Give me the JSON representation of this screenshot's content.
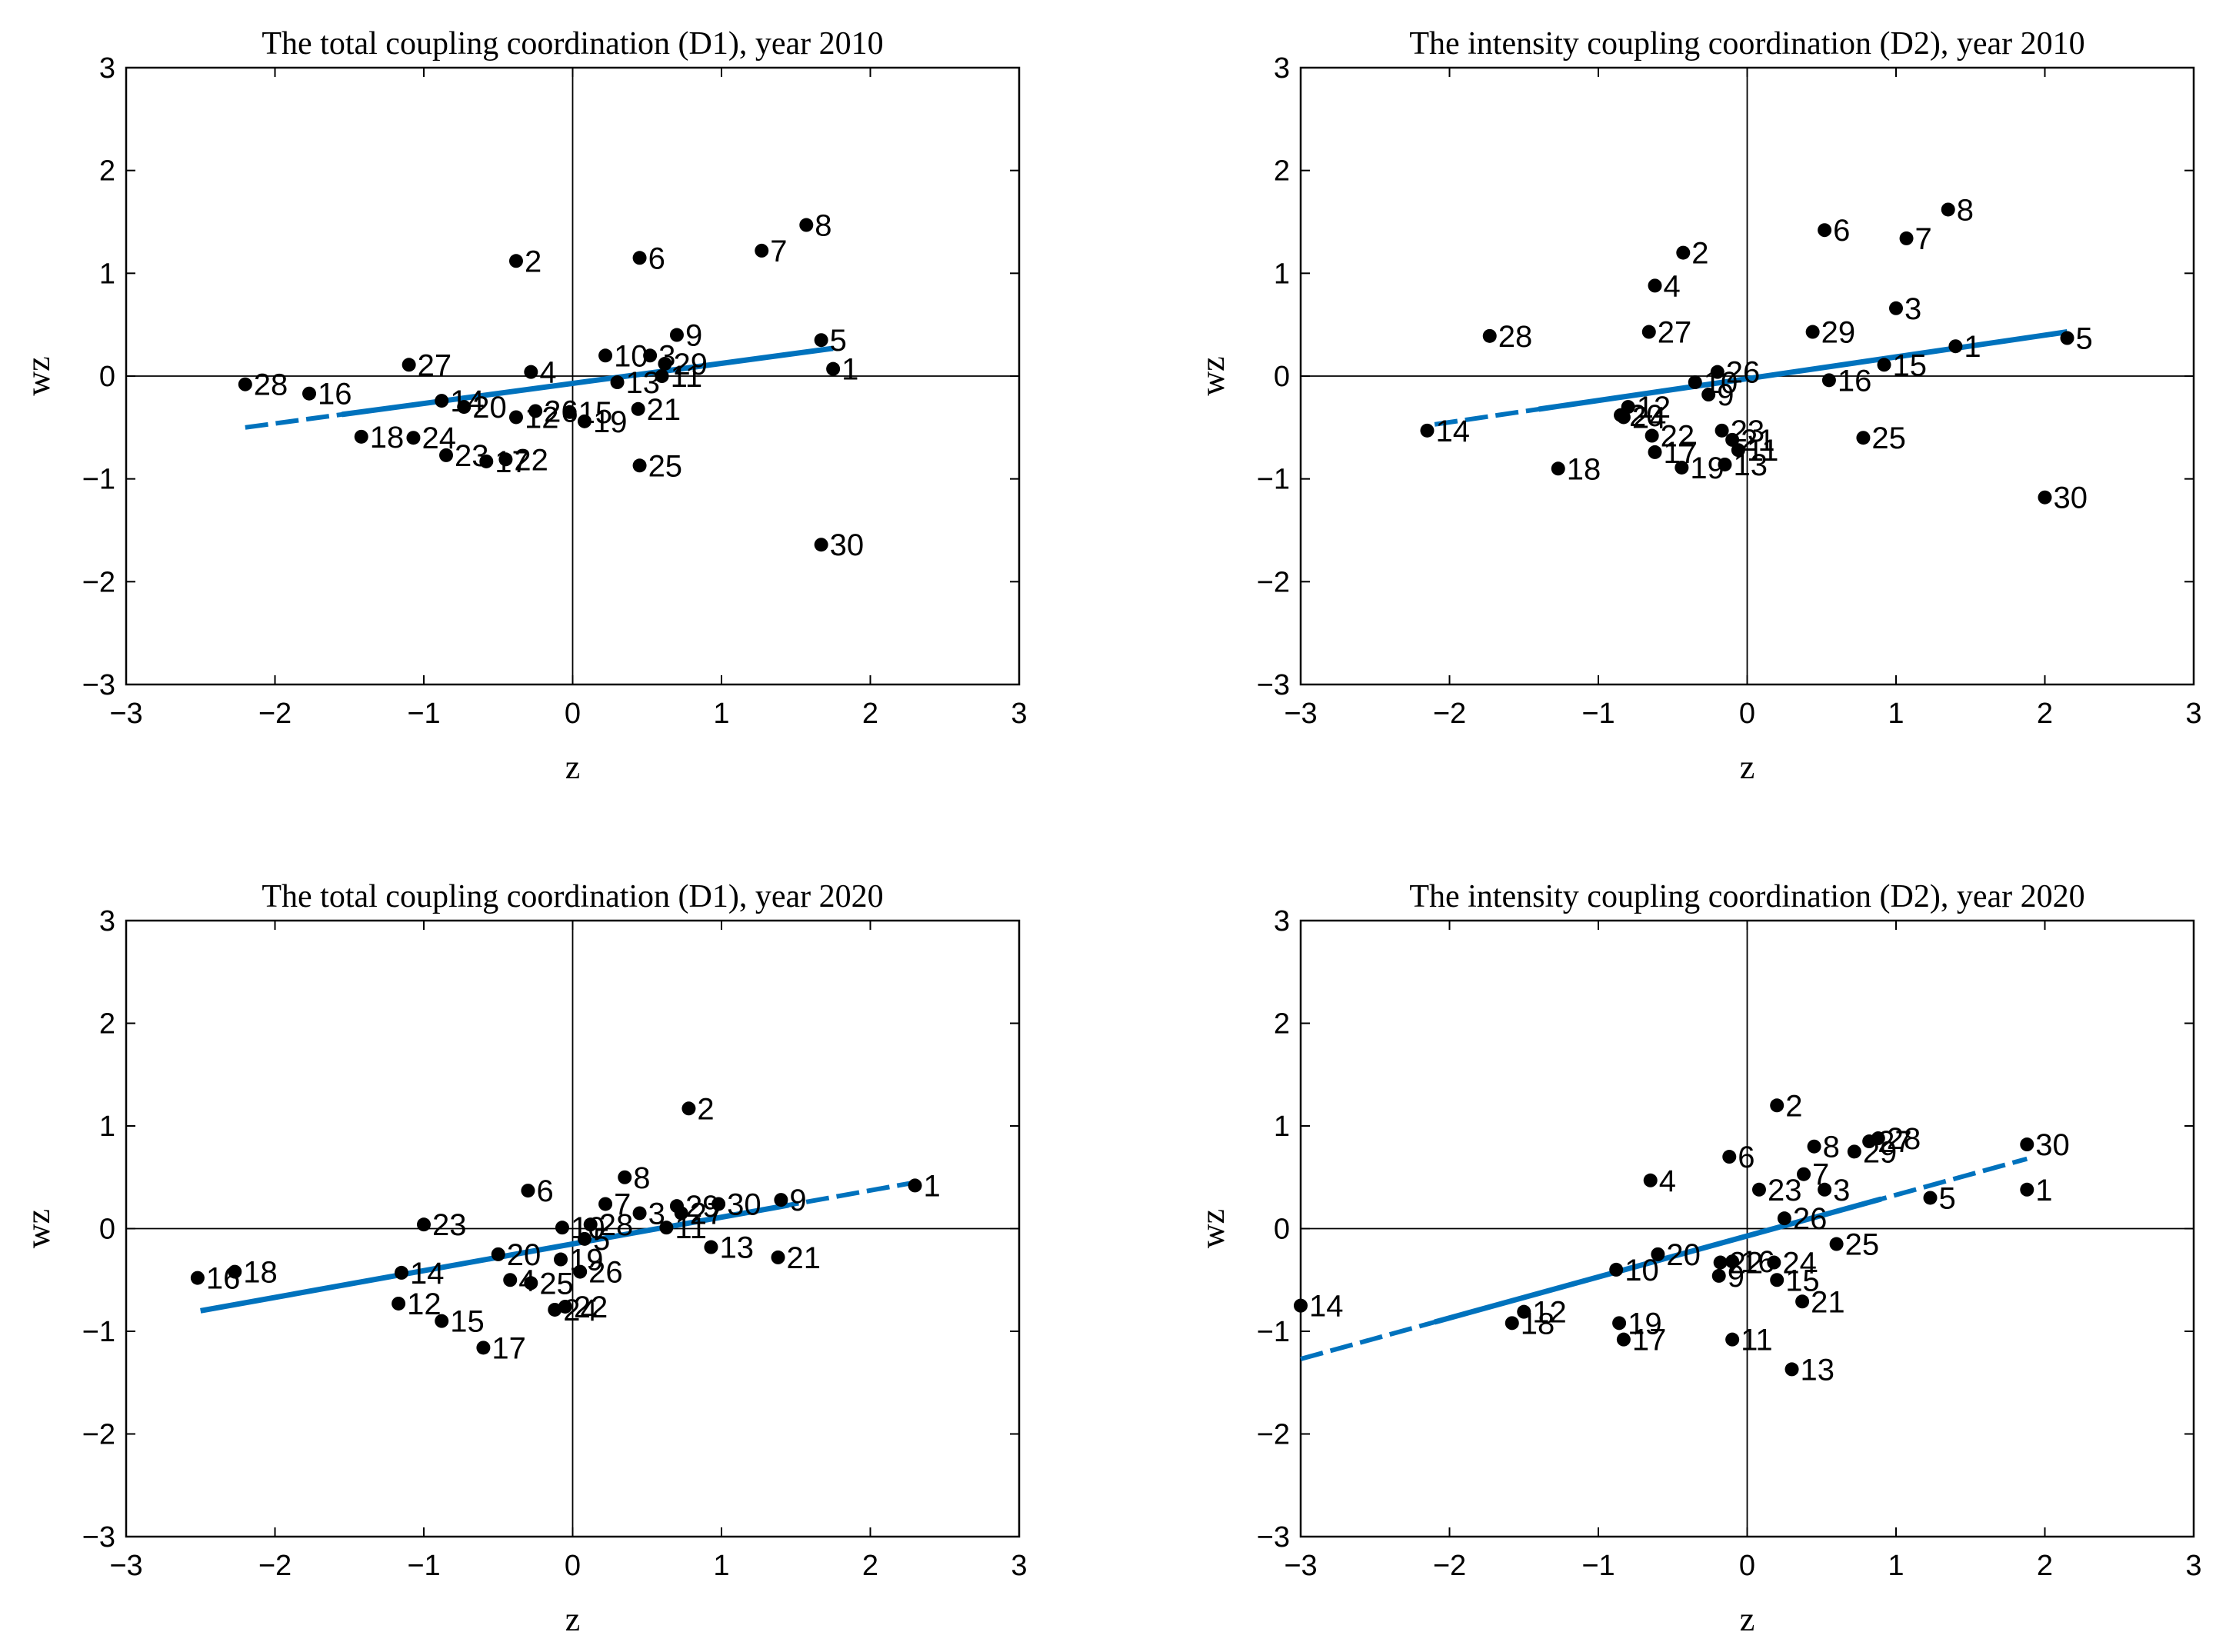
{
  "chart_data": [
    {
      "type": "scatter",
      "title": "The total coupling coordination (D1), year 2010",
      "xlabel": "z",
      "ylabel": "wz",
      "xlim": [
        -3,
        3
      ],
      "ylim": [
        -3,
        3
      ],
      "xticks": [
        -3,
        -2,
        -1,
        0,
        1,
        2,
        3
      ],
      "yticks": [
        -3,
        -2,
        -1,
        0,
        1,
        2,
        3
      ],
      "regression": {
        "x_start": -2.2,
        "y_start": -0.5,
        "x_end": 1.75,
        "y_end": 0.27,
        "solid_from_x": -1.55,
        "solid_to_x": 1.75
      },
      "points": [
        {
          "label": "1",
          "x": 1.75,
          "y": 0.07
        },
        {
          "label": "2",
          "x": -0.38,
          "y": 1.12
        },
        {
          "label": "3",
          "x": 0.52,
          "y": 0.2
        },
        {
          "label": "4",
          "x": -0.28,
          "y": 0.04
        },
        {
          "label": "5",
          "x": 1.67,
          "y": 0.35
        },
        {
          "label": "6",
          "x": 0.45,
          "y": 1.15
        },
        {
          "label": "7",
          "x": 1.27,
          "y": 1.22
        },
        {
          "label": "8",
          "x": 1.57,
          "y": 1.47
        },
        {
          "label": "9",
          "x": 0.7,
          "y": 0.4
        },
        {
          "label": "10",
          "x": 0.22,
          "y": 0.2
        },
        {
          "label": "11",
          "x": 0.6,
          "y": 0.0
        },
        {
          "label": "12",
          "x": -0.38,
          "y": -0.4
        },
        {
          "label": "13",
          "x": 0.3,
          "y": -0.06
        },
        {
          "label": "14",
          "x": -0.88,
          "y": -0.24
        },
        {
          "label": "15",
          "x": -0.02,
          "y": -0.35
        },
        {
          "label": "16",
          "x": -1.77,
          "y": -0.17
        },
        {
          "label": "17",
          "x": -0.58,
          "y": -0.83
        },
        {
          "label": "18",
          "x": -1.42,
          "y": -0.59
        },
        {
          "label": "19",
          "x": 0.08,
          "y": -0.44
        },
        {
          "label": "20",
          "x": -0.73,
          "y": -0.3
        },
        {
          "label": "21",
          "x": 0.44,
          "y": -0.32
        },
        {
          "label": "22",
          "x": -0.45,
          "y": -0.81
        },
        {
          "label": "23",
          "x": -0.85,
          "y": -0.77
        },
        {
          "label": "24",
          "x": -1.07,
          "y": -0.6
        },
        {
          "label": "25",
          "x": 0.45,
          "y": -0.87
        },
        {
          "label": "26",
          "x": -0.25,
          "y": -0.34
        },
        {
          "label": "27",
          "x": -1.1,
          "y": 0.11
        },
        {
          "label": "28",
          "x": -2.2,
          "y": -0.08
        },
        {
          "label": "29",
          "x": 0.62,
          "y": 0.12
        },
        {
          "label": "30",
          "x": 1.67,
          "y": -1.64
        }
      ]
    },
    {
      "type": "scatter",
      "title": "The intensity coupling coordination (D2), year 2010",
      "xlabel": "z",
      "ylabel": "wz",
      "xlim": [
        -3,
        3
      ],
      "ylim": [
        -3,
        3
      ],
      "xticks": [
        -3,
        -2,
        -1,
        0,
        1,
        2,
        3
      ],
      "yticks": [
        -3,
        -2,
        -1,
        0,
        1,
        2,
        3
      ],
      "regression": {
        "x_start": -2.1,
        "y_start": -0.47,
        "x_end": 2.15,
        "y_end": 0.43,
        "solid_from_x": -1.4,
        "solid_to_x": 2.15
      },
      "points": [
        {
          "label": "1",
          "x": 1.4,
          "y": 0.29
        },
        {
          "label": "2",
          "x": -0.43,
          "y": 1.2
        },
        {
          "label": "3",
          "x": 1.0,
          "y": 0.66
        },
        {
          "label": "4",
          "x": -0.62,
          "y": 0.88
        },
        {
          "label": "5",
          "x": 2.15,
          "y": 0.37
        },
        {
          "label": "6",
          "x": 0.52,
          "y": 1.42
        },
        {
          "label": "7",
          "x": 1.07,
          "y": 1.34
        },
        {
          "label": "8",
          "x": 1.35,
          "y": 1.62
        },
        {
          "label": "9",
          "x": -0.26,
          "y": -0.18
        },
        {
          "label": "10",
          "x": -0.35,
          "y": -0.06
        },
        {
          "label": "11",
          "x": -0.06,
          "y": -0.72
        },
        {
          "label": "12",
          "x": -0.8,
          "y": -0.3
        },
        {
          "label": "13",
          "x": -0.15,
          "y": -0.86
        },
        {
          "label": "14",
          "x": -2.15,
          "y": -0.53
        },
        {
          "label": "15",
          "x": 0.92,
          "y": 0.11
        },
        {
          "label": "16",
          "x": 0.55,
          "y": -0.04
        },
        {
          "label": "17",
          "x": -0.62,
          "y": -0.74
        },
        {
          "label": "18",
          "x": -1.27,
          "y": -0.9
        },
        {
          "label": "19",
          "x": -0.44,
          "y": -0.89
        },
        {
          "label": "20",
          "x": -0.85,
          "y": -0.38
        },
        {
          "label": "21",
          "x": -0.1,
          "y": -0.62
        },
        {
          "label": "22",
          "x": -0.64,
          "y": -0.58
        },
        {
          "label": "23",
          "x": -0.17,
          "y": -0.53
        },
        {
          "label": "24",
          "x": -0.83,
          "y": -0.4
        },
        {
          "label": "25",
          "x": 0.78,
          "y": -0.6
        },
        {
          "label": "26",
          "x": -0.2,
          "y": 0.04
        },
        {
          "label": "27",
          "x": -0.66,
          "y": 0.43
        },
        {
          "label": "28",
          "x": -1.73,
          "y": 0.39
        },
        {
          "label": "29",
          "x": 0.44,
          "y": 0.43
        },
        {
          "label": "30",
          "x": 2.0,
          "y": -1.18
        }
      ]
    },
    {
      "type": "scatter",
      "title": "The total coupling coordination (D1), year 2020",
      "xlabel": "z",
      "ylabel": "wz",
      "xlim": [
        -3,
        3
      ],
      "ylim": [
        -3,
        3
      ],
      "xticks": [
        -3,
        -2,
        -1,
        0,
        1,
        2,
        3
      ],
      "yticks": [
        -3,
        -2,
        -1,
        0,
        1,
        2,
        3
      ],
      "regression": {
        "x_start": -2.5,
        "y_start": -0.8,
        "x_end": 2.3,
        "y_end": 0.45,
        "solid_from_x": -2.5,
        "solid_to_x": 1.45
      },
      "points": [
        {
          "label": "1",
          "x": 2.3,
          "y": 0.42
        },
        {
          "label": "2",
          "x": 0.78,
          "y": 1.17
        },
        {
          "label": "3",
          "x": 0.45,
          "y": 0.15
        },
        {
          "label": "4",
          "x": -0.42,
          "y": -0.5
        },
        {
          "label": "5",
          "x": 0.08,
          "y": -0.1
        },
        {
          "label": "6",
          "x": -0.3,
          "y": 0.37
        },
        {
          "label": "7",
          "x": 0.22,
          "y": 0.24
        },
        {
          "label": "8",
          "x": 0.35,
          "y": 0.5
        },
        {
          "label": "9",
          "x": 1.4,
          "y": 0.28
        },
        {
          "label": "10",
          "x": -0.07,
          "y": 0.01
        },
        {
          "label": "11",
          "x": 0.63,
          "y": 0.01
        },
        {
          "label": "12",
          "x": -1.17,
          "y": -0.73
        },
        {
          "label": "13",
          "x": 0.93,
          "y": -0.18
        },
        {
          "label": "14",
          "x": -1.15,
          "y": -0.43
        },
        {
          "label": "15",
          "x": -0.88,
          "y": -0.9
        },
        {
          "label": "16",
          "x": -2.52,
          "y": -0.48
        },
        {
          "label": "17",
          "x": -0.6,
          "y": -1.16
        },
        {
          "label": "18",
          "x": -2.27,
          "y": -0.42
        },
        {
          "label": "19",
          "x": -0.08,
          "y": -0.3
        },
        {
          "label": "20",
          "x": -0.5,
          "y": -0.25
        },
        {
          "label": "21",
          "x": 1.38,
          "y": -0.28
        },
        {
          "label": "22",
          "x": -0.05,
          "y": -0.76
        },
        {
          "label": "23",
          "x": -1.0,
          "y": 0.04
        },
        {
          "label": "24",
          "x": -0.12,
          "y": -0.79
        },
        {
          "label": "25",
          "x": -0.28,
          "y": -0.53
        },
        {
          "label": "26",
          "x": 0.05,
          "y": -0.42
        },
        {
          "label": "27",
          "x": 0.73,
          "y": 0.15
        },
        {
          "label": "28",
          "x": 0.12,
          "y": 0.04
        },
        {
          "label": "29",
          "x": 0.7,
          "y": 0.22
        },
        {
          "label": "30",
          "x": 0.98,
          "y": 0.24
        }
      ]
    },
    {
      "type": "scatter",
      "title": "The intensity coupling coordination (D2), year 2020",
      "xlabel": "z",
      "ylabel": "wz",
      "xlim": [
        -3,
        3
      ],
      "ylim": [
        -3,
        3
      ],
      "xticks": [
        -3,
        -2,
        -1,
        0,
        1,
        2,
        3
      ],
      "yticks": [
        -3,
        -2,
        -1,
        0,
        1,
        2,
        3
      ],
      "regression": {
        "x_start": -3.0,
        "y_start": -1.27,
        "x_end": 1.88,
        "y_end": 0.68,
        "solid_from_x": -2.1,
        "solid_to_x": 0.9
      },
      "points": [
        {
          "label": "1",
          "x": 1.88,
          "y": 0.38
        },
        {
          "label": "2",
          "x": 0.2,
          "y": 1.2
        },
        {
          "label": "3",
          "x": 0.52,
          "y": 0.38
        },
        {
          "label": "4",
          "x": -0.65,
          "y": 0.47
        },
        {
          "label": "5",
          "x": 1.23,
          "y": 0.3
        },
        {
          "label": "6",
          "x": -0.12,
          "y": 0.7
        },
        {
          "label": "7",
          "x": 0.38,
          "y": 0.53
        },
        {
          "label": "8",
          "x": 0.45,
          "y": 0.8
        },
        {
          "label": "9",
          "x": -0.19,
          "y": -0.46
        },
        {
          "label": "10",
          "x": -0.88,
          "y": -0.4
        },
        {
          "label": "11",
          "x": -0.1,
          "y": -1.08
        },
        {
          "label": "12",
          "x": -1.5,
          "y": -0.81
        },
        {
          "label": "13",
          "x": 0.3,
          "y": -1.37
        },
        {
          "label": "14",
          "x": -3.0,
          "y": -0.75
        },
        {
          "label": "15",
          "x": 0.2,
          "y": -0.5
        },
        {
          "label": "16",
          "x": -0.1,
          "y": -0.32
        },
        {
          "label": "17",
          "x": -0.83,
          "y": -1.08
        },
        {
          "label": "18",
          "x": -1.58,
          "y": -0.92
        },
        {
          "label": "19",
          "x": -0.86,
          "y": -0.92
        },
        {
          "label": "20",
          "x": -0.6,
          "y": -0.25
        },
        {
          "label": "21",
          "x": 0.37,
          "y": -0.71
        },
        {
          "label": "22",
          "x": -0.18,
          "y": -0.33
        },
        {
          "label": "23",
          "x": 0.08,
          "y": 0.38
        },
        {
          "label": "24",
          "x": 0.18,
          "y": -0.33
        },
        {
          "label": "25",
          "x": 0.6,
          "y": -0.15
        },
        {
          "label": "26",
          "x": 0.25,
          "y": 0.1
        },
        {
          "label": "27",
          "x": 0.82,
          "y": 0.85
        },
        {
          "label": "28",
          "x": 0.88,
          "y": 0.88
        },
        {
          "label": "29",
          "x": 0.72,
          "y": 0.75
        },
        {
          "label": "30",
          "x": 1.88,
          "y": 0.82
        }
      ]
    }
  ],
  "colors": {
    "regression": "#0072BD",
    "points": "#000000",
    "axes": "#000000"
  }
}
